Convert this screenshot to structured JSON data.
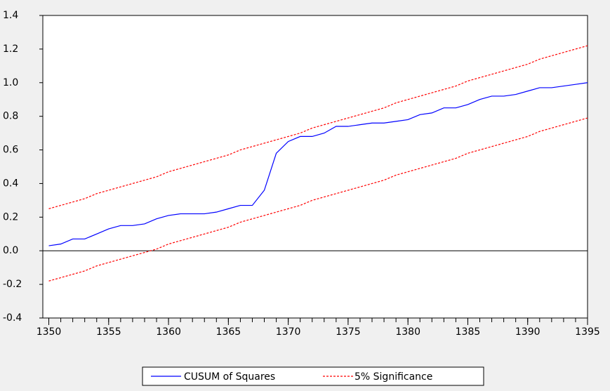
{
  "chart_data": {
    "type": "line",
    "x": [
      1350,
      1351,
      1352,
      1353,
      1354,
      1355,
      1356,
      1357,
      1358,
      1359,
      1360,
      1361,
      1362,
      1363,
      1364,
      1365,
      1366,
      1367,
      1368,
      1369,
      1370,
      1371,
      1372,
      1373,
      1374,
      1375,
      1376,
      1377,
      1378,
      1379,
      1380,
      1381,
      1382,
      1383,
      1384,
      1385,
      1386,
      1387,
      1388,
      1389,
      1390,
      1391,
      1392,
      1393,
      1394,
      1395
    ],
    "series": [
      {
        "name": "CUSUM of Squares",
        "color": "#0000ff",
        "dash": false,
        "values": [
          0.03,
          0.04,
          0.07,
          0.07,
          0.1,
          0.13,
          0.15,
          0.15,
          0.16,
          0.19,
          0.21,
          0.22,
          0.22,
          0.22,
          0.23,
          0.25,
          0.27,
          0.27,
          0.36,
          0.58,
          0.65,
          0.68,
          0.68,
          0.7,
          0.74,
          0.74,
          0.75,
          0.76,
          0.76,
          0.77,
          0.78,
          0.81,
          0.82,
          0.85,
          0.85,
          0.87,
          0.9,
          0.92,
          0.92,
          0.93,
          0.95,
          0.97,
          0.97,
          0.98,
          0.99,
          1.0
        ]
      },
      {
        "name": "5% Significance",
        "color": "#ff0000",
        "dash": true,
        "values": [
          0.25,
          0.27,
          0.29,
          0.31,
          0.34,
          0.36,
          0.38,
          0.4,
          0.42,
          0.44,
          0.47,
          0.49,
          0.51,
          0.53,
          0.55,
          0.57,
          0.6,
          0.62,
          0.64,
          0.66,
          0.68,
          0.7,
          0.73,
          0.75,
          0.77,
          0.79,
          0.81,
          0.83,
          0.85,
          0.88,
          0.9,
          0.92,
          0.94,
          0.96,
          0.98,
          1.01,
          1.03,
          1.05,
          1.07,
          1.09,
          1.11,
          1.14,
          1.16,
          1.18,
          1.2,
          1.22
        ]
      },
      {
        "dash": true,
        "color": "#ff0000",
        "values": [
          -0.18,
          -0.16,
          -0.14,
          -0.12,
          -0.09,
          -0.07,
          -0.05,
          -0.03,
          -0.01,
          0.01,
          0.04,
          0.06,
          0.08,
          0.1,
          0.12,
          0.14,
          0.17,
          0.19,
          0.21,
          0.23,
          0.25,
          0.27,
          0.3,
          0.32,
          0.34,
          0.36,
          0.38,
          0.4,
          0.42,
          0.45,
          0.47,
          0.49,
          0.51,
          0.53,
          0.55,
          0.58,
          0.6,
          0.62,
          0.64,
          0.66,
          0.68,
          0.71,
          0.73,
          0.75,
          0.77,
          0.79
        ]
      }
    ],
    "xlim": [
      1349.5,
      1395
    ],
    "xticks": [
      1350,
      1355,
      1360,
      1365,
      1370,
      1375,
      1380,
      1385,
      1390,
      1395
    ],
    "ylim": [
      -0.4,
      1.4
    ],
    "yticks": [
      -0.4,
      -0.2,
      {
        "value": 0,
        "label": "0.0"
      },
      0.2,
      0.4,
      0.6,
      0.8,
      {
        "value": 1,
        "label": "1.0"
      },
      1.2,
      1.4
    ],
    "zero_line": true,
    "legend": "bottom"
  }
}
